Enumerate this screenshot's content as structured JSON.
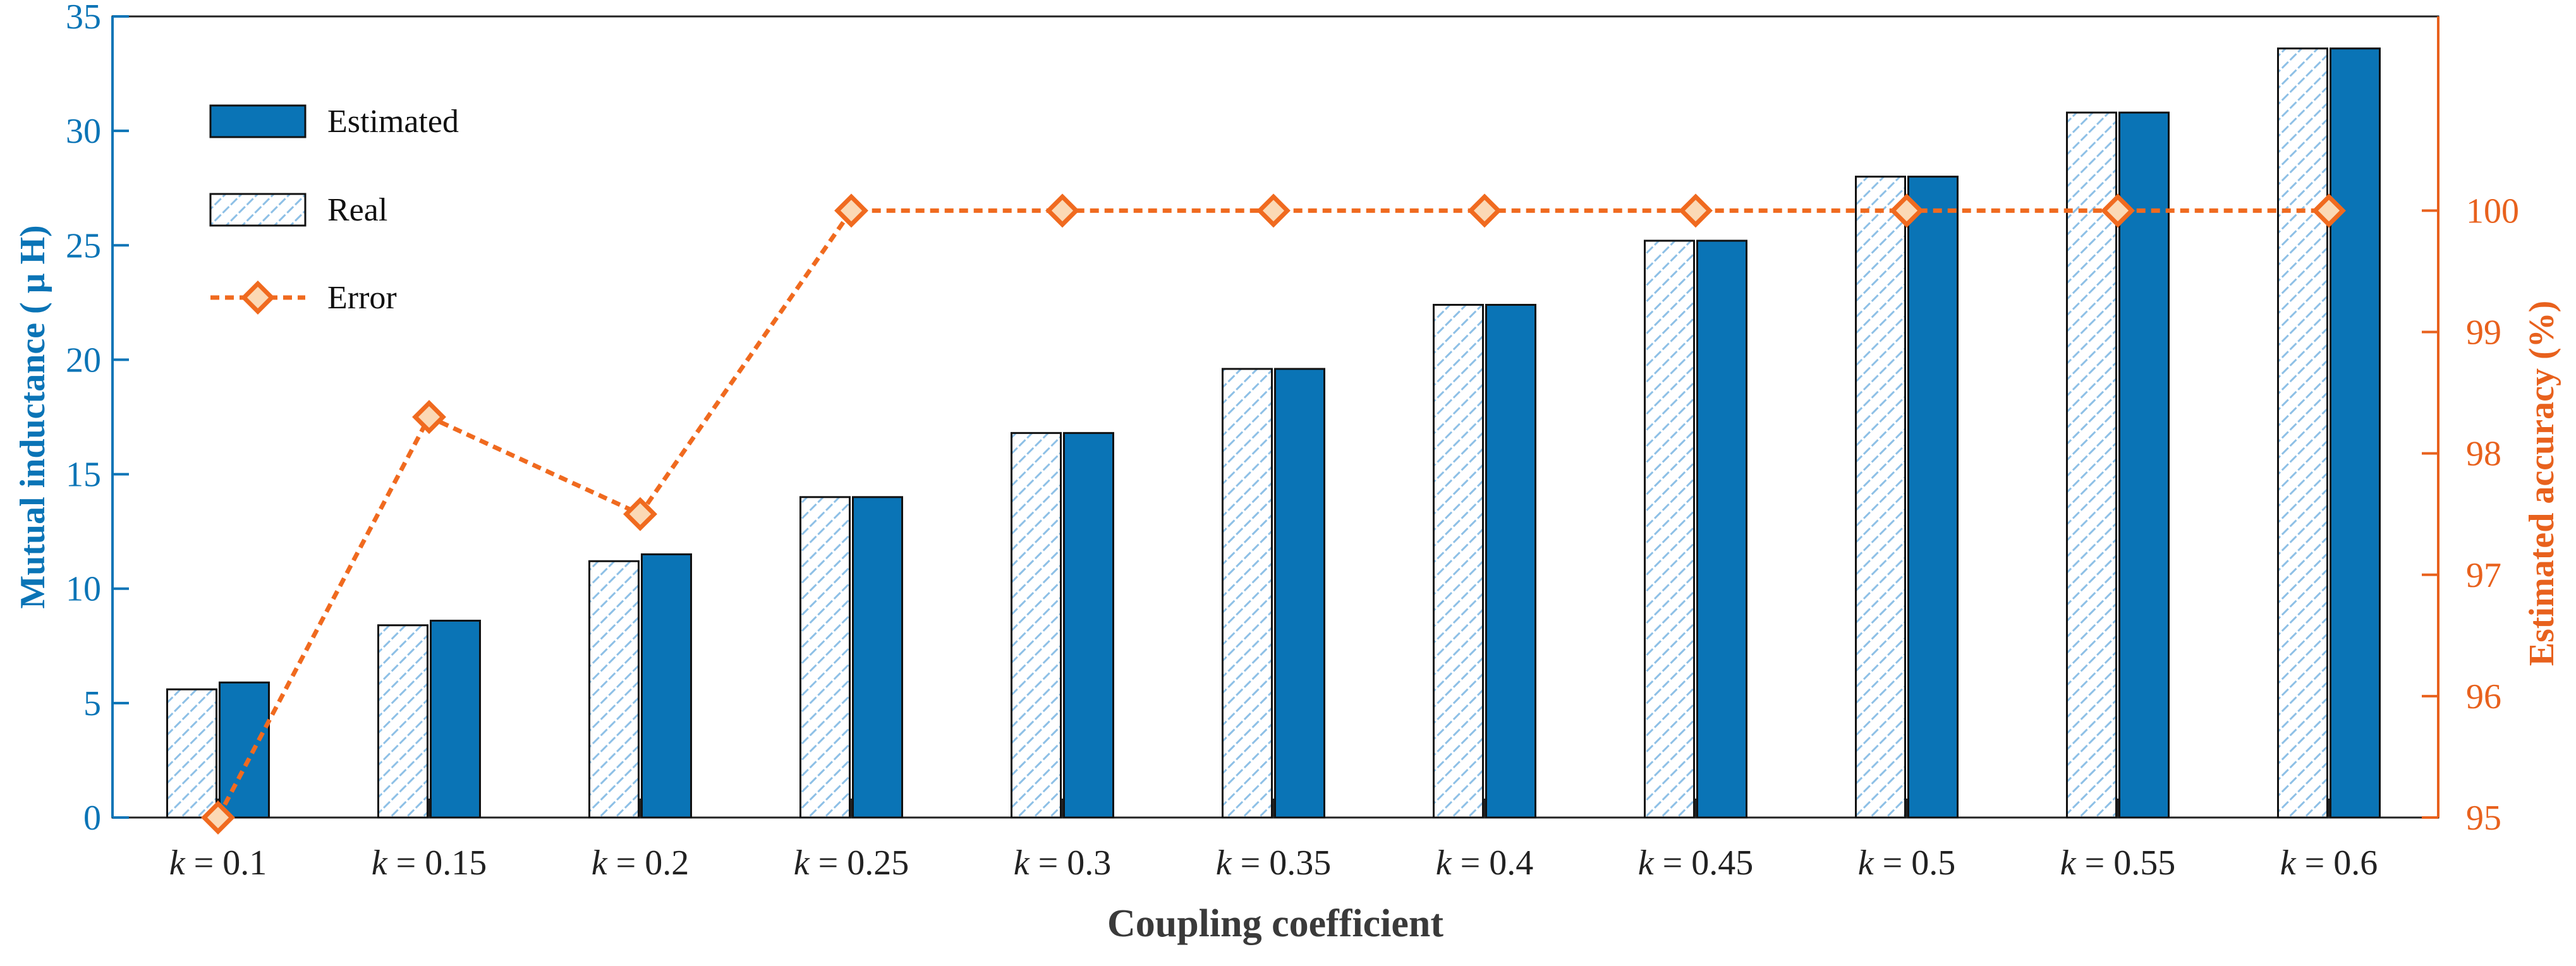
{
  "chart_data": {
    "type": "bar",
    "title": "",
    "xlabel": "Coupling coefficient",
    "ylabel": "Mutual inductance ( μ H)",
    "ylabel_right": "Estimated accuracy (%)",
    "k_symbol": "k",
    "categories": [
      "0.1",
      "0.15",
      "0.2",
      "0.25",
      "0.3",
      "0.35",
      "0.4",
      "0.45",
      "0.5",
      "0.55",
      "0.6"
    ],
    "ylim": [
      0,
      35
    ],
    "yticks": [
      0,
      5,
      10,
      15,
      20,
      25,
      30,
      35
    ],
    "ylim_right": [
      95,
      101.6
    ],
    "yticks_right": [
      95,
      96,
      97,
      98,
      99,
      100
    ],
    "grid": false,
    "legend_position": "top-left",
    "colors": {
      "estimated": "#0a74b6",
      "real_hatch": "#8ec0e6",
      "error": "#f06a1f",
      "left_axis": "#0a74b6",
      "right_axis": "#e8611d"
    },
    "series": [
      {
        "name": "Estimated",
        "kind": "bar",
        "axis": "left",
        "values": [
          5.9,
          8.6,
          11.5,
          14.0,
          16.8,
          19.6,
          22.4,
          25.2,
          28.0,
          30.8,
          33.6
        ]
      },
      {
        "name": "Real",
        "kind": "bar-hatched",
        "axis": "left",
        "values": [
          5.6,
          8.4,
          11.2,
          14.0,
          16.8,
          19.6,
          22.4,
          25.2,
          28.0,
          30.8,
          33.6
        ]
      },
      {
        "name": "Error",
        "kind": "line-marker",
        "axis": "right",
        "values": [
          95.0,
          98.3,
          97.5,
          100.0,
          100.0,
          100.0,
          100.0,
          100.0,
          100.0,
          100.0,
          100.0
        ]
      }
    ]
  }
}
